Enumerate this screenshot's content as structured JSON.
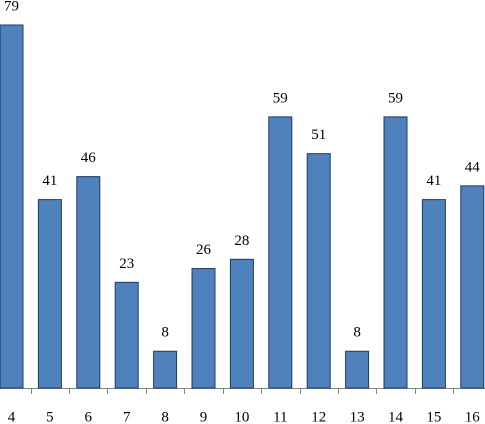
{
  "chart_data": {
    "type": "bar",
    "categories": [
      "4",
      "5",
      "6",
      "7",
      "8",
      "9",
      "10",
      "11",
      "12",
      "13",
      "14",
      "15",
      "16"
    ],
    "values": [
      79,
      41,
      46,
      23,
      8,
      26,
      28,
      59,
      51,
      8,
      59,
      41,
      44
    ],
    "color": "#4f81bd"
  }
}
